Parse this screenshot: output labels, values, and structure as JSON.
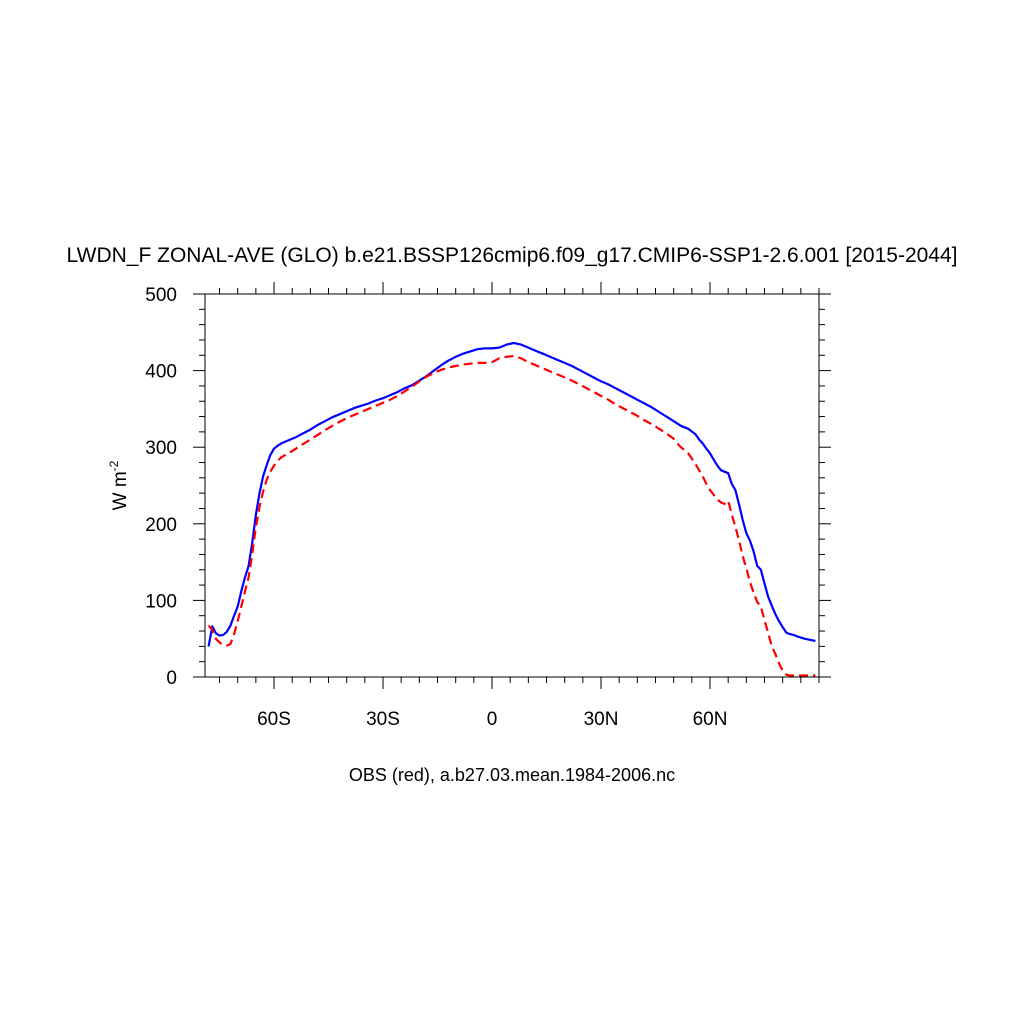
{
  "chart_data": {
    "type": "line",
    "title": "LWDN_F ZONAL-AVE (GLO) b.e21.BSSP126cmip6.f09_g17.CMIP6-SSP1-2.6.001 [2015-2044]",
    "ylabel_base": "W m",
    "ylabel_exp": "-2",
    "xlabel": "OBS (red), a.b27.03.mean.1984-2006.nc",
    "xlim": [
      -79,
      90
    ],
    "ylim": [
      0,
      500
    ],
    "x_ticks": [
      {
        "value": -60,
        "label": "60S"
      },
      {
        "value": -30,
        "label": "30S"
      },
      {
        "value": 0,
        "label": "0"
      },
      {
        "value": 30,
        "label": "30N"
      },
      {
        "value": 60,
        "label": "60N"
      }
    ],
    "y_ticks": [
      {
        "value": 0,
        "label": "0"
      },
      {
        "value": 100,
        "label": "100"
      },
      {
        "value": 200,
        "label": "200"
      },
      {
        "value": 300,
        "label": "300"
      },
      {
        "value": 400,
        "label": "400"
      },
      {
        "value": 500,
        "label": "500"
      }
    ],
    "grid": false,
    "series": [
      {
        "color": "#0000ff",
        "dash": "solid",
        "points": [
          [
            -78,
            40
          ],
          [
            -77,
            66
          ],
          [
            -76,
            57
          ],
          [
            -75,
            54
          ],
          [
            -74,
            55
          ],
          [
            -73,
            59
          ],
          [
            -72,
            67
          ],
          [
            -71,
            80
          ],
          [
            -70,
            92
          ],
          [
            -69,
            112
          ],
          [
            -68,
            130
          ],
          [
            -67,
            145
          ],
          [
            -66,
            175
          ],
          [
            -65,
            212
          ],
          [
            -64,
            240
          ],
          [
            -63,
            262
          ],
          [
            -62,
            277
          ],
          [
            -61,
            290
          ],
          [
            -60,
            298
          ],
          [
            -59,
            302
          ],
          [
            -58,
            305
          ],
          [
            -56,
            309
          ],
          [
            -54,
            313
          ],
          [
            -52,
            318
          ],
          [
            -50,
            323
          ],
          [
            -48,
            329
          ],
          [
            -46,
            334
          ],
          [
            -44,
            339
          ],
          [
            -42,
            343
          ],
          [
            -40,
            347
          ],
          [
            -38,
            351
          ],
          [
            -36,
            354
          ],
          [
            -34,
            357
          ],
          [
            -32,
            361
          ],
          [
            -30,
            364
          ],
          [
            -28,
            368
          ],
          [
            -26,
            372
          ],
          [
            -24,
            377
          ],
          [
            -22,
            381
          ],
          [
            -20,
            387
          ],
          [
            -18,
            393
          ],
          [
            -16,
            400
          ],
          [
            -14,
            407
          ],
          [
            -12,
            413
          ],
          [
            -10,
            418
          ],
          [
            -8,
            422
          ],
          [
            -6,
            425
          ],
          [
            -4,
            428
          ],
          [
            -2,
            429
          ],
          [
            0,
            429
          ],
          [
            2,
            430
          ],
          [
            4,
            434
          ],
          [
            6,
            436
          ],
          [
            8,
            434
          ],
          [
            10,
            430
          ],
          [
            12,
            426
          ],
          [
            14,
            422
          ],
          [
            16,
            418
          ],
          [
            18,
            414
          ],
          [
            20,
            410
          ],
          [
            22,
            406
          ],
          [
            24,
            401
          ],
          [
            26,
            396
          ],
          [
            28,
            391
          ],
          [
            30,
            386
          ],
          [
            32,
            382
          ],
          [
            34,
            377
          ],
          [
            36,
            372
          ],
          [
            38,
            367
          ],
          [
            40,
            362
          ],
          [
            42,
            357
          ],
          [
            44,
            352
          ],
          [
            46,
            346
          ],
          [
            48,
            340
          ],
          [
            50,
            334
          ],
          [
            52,
            328
          ],
          [
            54,
            324
          ],
          [
            56,
            317
          ],
          [
            57,
            310
          ],
          [
            58,
            305
          ],
          [
            59,
            298
          ],
          [
            60,
            292
          ],
          [
            61,
            284
          ],
          [
            62,
            276
          ],
          [
            63,
            270
          ],
          [
            64,
            268
          ],
          [
            65,
            266
          ],
          [
            66,
            252
          ],
          [
            67,
            244
          ],
          [
            68,
            225
          ],
          [
            69,
            205
          ],
          [
            70,
            188
          ],
          [
            71,
            178
          ],
          [
            72,
            164
          ],
          [
            73,
            145
          ],
          [
            74,
            140
          ],
          [
            75,
            122
          ],
          [
            76,
            105
          ],
          [
            77,
            93
          ],
          [
            78,
            82
          ],
          [
            79,
            73
          ],
          [
            80,
            65
          ],
          [
            81,
            58
          ],
          [
            82,
            56
          ],
          [
            83,
            55
          ],
          [
            84,
            53
          ],
          [
            86,
            50
          ],
          [
            88,
            48
          ],
          [
            89,
            47
          ]
        ]
      },
      {
        "color": "#ff0000",
        "dash": "dashed",
        "points": [
          [
            -78,
            67
          ],
          [
            -77,
            62
          ],
          [
            -76,
            50
          ],
          [
            -75,
            45
          ],
          [
            -74,
            42
          ],
          [
            -73,
            41
          ],
          [
            -72,
            43
          ],
          [
            -71,
            56
          ],
          [
            -70,
            73
          ],
          [
            -69,
            92
          ],
          [
            -68,
            112
          ],
          [
            -67,
            130
          ],
          [
            -66,
            160
          ],
          [
            -65,
            196
          ],
          [
            -64,
            222
          ],
          [
            -63,
            242
          ],
          [
            -62,
            258
          ],
          [
            -61,
            268
          ],
          [
            -60,
            276
          ],
          [
            -59,
            282
          ],
          [
            -58,
            287
          ],
          [
            -56,
            292
          ],
          [
            -54,
            298
          ],
          [
            -52,
            304
          ],
          [
            -50,
            310
          ],
          [
            -48,
            316
          ],
          [
            -46,
            322
          ],
          [
            -44,
            328
          ],
          [
            -42,
            333
          ],
          [
            -40,
            338
          ],
          [
            -38,
            342
          ],
          [
            -36,
            346
          ],
          [
            -34,
            350
          ],
          [
            -32,
            354
          ],
          [
            -30,
            358
          ],
          [
            -28,
            362
          ],
          [
            -26,
            367
          ],
          [
            -24,
            373
          ],
          [
            -22,
            379
          ],
          [
            -20,
            386
          ],
          [
            -18,
            392
          ],
          [
            -16,
            397
          ],
          [
            -14,
            401
          ],
          [
            -12,
            404
          ],
          [
            -10,
            406
          ],
          [
            -8,
            408
          ],
          [
            -6,
            409
          ],
          [
            -4,
            410
          ],
          [
            -2,
            410
          ],
          [
            0,
            411
          ],
          [
            2,
            416
          ],
          [
            4,
            418
          ],
          [
            6,
            419
          ],
          [
            8,
            416
          ],
          [
            10,
            411
          ],
          [
            12,
            407
          ],
          [
            14,
            403
          ],
          [
            16,
            399
          ],
          [
            18,
            395
          ],
          [
            20,
            391
          ],
          [
            22,
            387
          ],
          [
            24,
            382
          ],
          [
            26,
            377
          ],
          [
            28,
            372
          ],
          [
            30,
            367
          ],
          [
            32,
            362
          ],
          [
            34,
            356
          ],
          [
            36,
            351
          ],
          [
            38,
            346
          ],
          [
            40,
            341
          ],
          [
            42,
            335
          ],
          [
            44,
            330
          ],
          [
            46,
            324
          ],
          [
            48,
            318
          ],
          [
            50,
            311
          ],
          [
            51,
            305
          ],
          [
            52,
            300
          ],
          [
            54,
            292
          ],
          [
            56,
            278
          ],
          [
            57,
            270
          ],
          [
            58,
            262
          ],
          [
            59,
            252
          ],
          [
            60,
            244
          ],
          [
            61,
            238
          ],
          [
            62,
            232
          ],
          [
            63,
            228
          ],
          [
            64,
            226
          ],
          [
            65,
            230
          ],
          [
            66,
            212
          ],
          [
            67,
            196
          ],
          [
            68,
            178
          ],
          [
            69,
            158
          ],
          [
            70,
            142
          ],
          [
            71,
            124
          ],
          [
            72,
            110
          ],
          [
            73,
            98
          ],
          [
            74,
            92
          ],
          [
            75,
            74
          ],
          [
            76,
            58
          ],
          [
            77,
            40
          ],
          [
            78,
            30
          ],
          [
            79,
            18
          ],
          [
            80,
            8
          ],
          [
            81,
            3
          ],
          [
            82,
            2
          ],
          [
            84,
            2
          ],
          [
            86,
            2
          ],
          [
            88,
            2
          ],
          [
            89,
            2
          ]
        ]
      }
    ]
  }
}
